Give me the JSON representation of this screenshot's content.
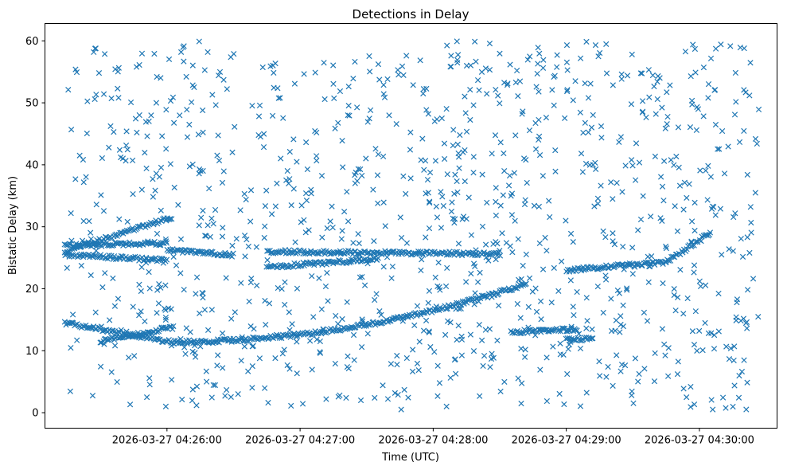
{
  "chart_data": {
    "type": "scatter",
    "title": "Detections in Delay",
    "xlabel": "Time (UTC)",
    "ylabel": "Bistatic Delay (km)",
    "marker": "x",
    "color": "#1f77b4",
    "grid": false,
    "x_time_range": [
      "2026-03-27 04:25:14",
      "2026-03-27 04:30:27"
    ],
    "xlim": [
      "2026-03-27 04:25:05",
      "2026-03-27 04:30:35"
    ],
    "ylim": [
      -2.5,
      62.8
    ],
    "x_ticks": [
      "2026-03-27 04:26:00",
      "2026-03-27 04:27:00",
      "2026-03-27 04:28:00",
      "2026-03-27 04:29:00",
      "2026-03-27 04:30:00"
    ],
    "y_ticks": [
      "0",
      "10",
      "20",
      "30",
      "40",
      "50",
      "60"
    ],
    "tracks": [
      {
        "x_start": "2026-03-27 04:25:14",
        "x_end": "2026-03-27 04:26:02",
        "y_start": 14.5,
        "y_end": 11.4
      },
      {
        "x_start": "2026-03-27 04:25:30",
        "x_end": "2026-03-27 04:26:03",
        "y_start": 11.5,
        "y_end": 13.8
      },
      {
        "x_start": "2026-03-27 04:26:03",
        "x_end": "2026-03-27 04:28:42",
        "y_start": 11.4,
        "y_end": 20.8,
        "curve": "quadratic"
      },
      {
        "x_start": "2026-03-27 04:25:14",
        "x_end": "2026-03-27 04:26:02",
        "y_start": 26.0,
        "y_end": 31.5
      },
      {
        "x_start": "2026-03-27 04:25:14",
        "x_end": "2026-03-27 04:26:00",
        "y_start": 25.5,
        "y_end": 24.6
      },
      {
        "x_start": "2026-03-27 04:25:14",
        "x_end": "2026-03-27 04:26:00",
        "y_start": 27.0,
        "y_end": 27.4
      },
      {
        "x_start": "2026-03-27 04:26:00",
        "x_end": "2026-03-27 04:26:30",
        "y_start": 26.2,
        "y_end": 25.4
      },
      {
        "x_start": "2026-03-27 04:26:45",
        "x_end": "2026-03-27 04:28:30",
        "y_start": 26.0,
        "y_end": 25.6
      },
      {
        "x_start": "2026-03-27 04:26:45",
        "x_end": "2026-03-27 04:27:35",
        "y_start": 23.5,
        "y_end": 24.8
      },
      {
        "x_start": "2026-03-27 04:29:00",
        "x_end": "2026-03-27 04:29:45",
        "y_start": 23.0,
        "y_end": 24.3
      },
      {
        "x_start": "2026-03-27 04:29:45",
        "x_end": "2026-03-27 04:30:05",
        "y_start": 24.3,
        "y_end": 29.0
      },
      {
        "x_start": "2026-03-27 04:28:35",
        "x_end": "2026-03-27 04:29:05",
        "y_start": 13.0,
        "y_end": 13.5
      },
      {
        "x_start": "2026-03-27 04:29:00",
        "x_end": "2026-03-27 04:29:12",
        "y_start": 12.0,
        "y_end": 11.8
      }
    ],
    "noise": {
      "description": "uniform clutter detections",
      "y_range": [
        0.5,
        60
      ],
      "approx_count": 1100
    }
  }
}
